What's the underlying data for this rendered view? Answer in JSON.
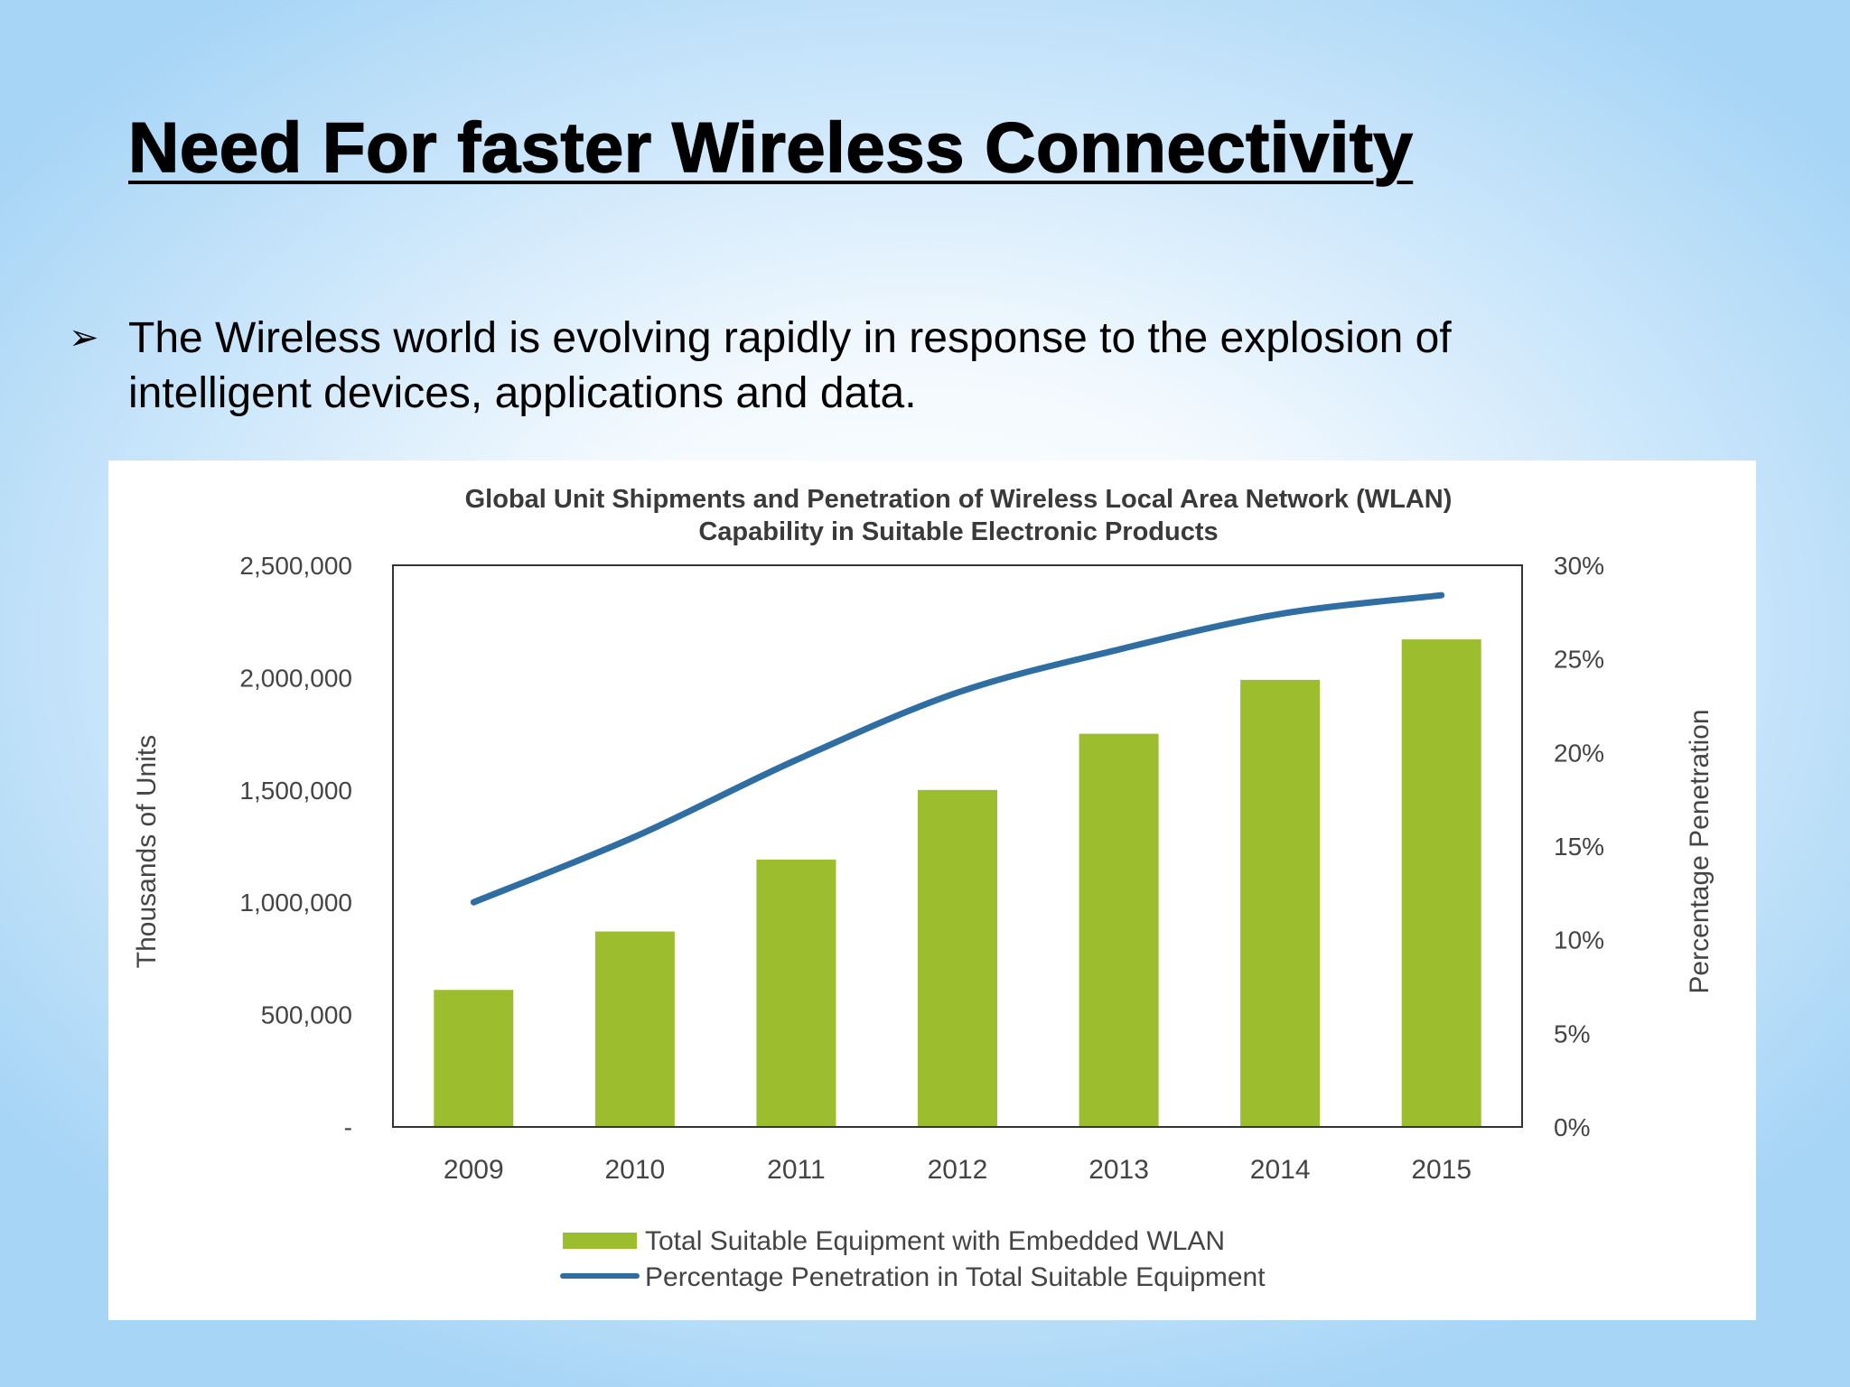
{
  "slide": {
    "title": "Need For faster Wireless Connectivity",
    "bullet_marker": "➢",
    "bullet_text": "The Wireless world is evolving rapidly in response to the explosion of intelligent devices, applications and data."
  },
  "chart_data": {
    "type": "bar",
    "title": "Global Unit Shipments and Penetration of Wireless Local Area Network (WLAN)",
    "subtitle": "Capability in Suitable Electronic Products",
    "categories": [
      "2009",
      "2010",
      "2011",
      "2012",
      "2013",
      "2014",
      "2015"
    ],
    "ylabel": "Thousands of Units",
    "y2label": "Percentage Penetration",
    "ylim": [
      0,
      2500000
    ],
    "y2lim": [
      0,
      30
    ],
    "yticks": [
      "-",
      "500,000",
      "1,000,000",
      "1,500,000",
      "2,000,000",
      "2,500,000"
    ],
    "y2ticks": [
      "0%",
      "5%",
      "10%",
      "15%",
      "20%",
      "25%",
      "30%"
    ],
    "grid": false,
    "legend_position": "bottom",
    "series": [
      {
        "name": "Total Suitable Equipment with Embedded WLAN",
        "type": "bar",
        "axis": "left",
        "color": "#9bbd2e",
        "values": [
          610000,
          870000,
          1190000,
          1500000,
          1750000,
          1990000,
          2170000
        ]
      },
      {
        "name": "Percentage Penetration in Total Suitable Equipment",
        "type": "line",
        "axis": "right",
        "color": "#2e6ea3",
        "values": [
          12,
          15.5,
          19.6,
          23.2,
          25.5,
          27.4,
          28.4
        ]
      }
    ]
  }
}
